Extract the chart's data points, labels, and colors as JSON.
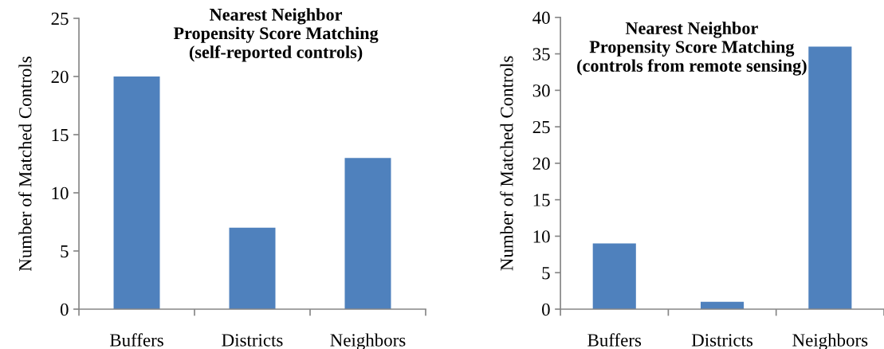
{
  "chart_data": [
    {
      "type": "bar",
      "title": "Nearest Neighbor\nPropensity Score Matching\n(self-reported controls)",
      "ylabel": "Number of Matched Controls",
      "categories": [
        "Buffers",
        "Districts",
        "Neighbors"
      ],
      "values": [
        20,
        7,
        13
      ],
      "color": "#4f81bd",
      "ylim": [
        0,
        25
      ],
      "yticks": [
        0,
        5,
        10,
        15,
        20,
        25
      ]
    },
    {
      "type": "bar",
      "title": "Nearest Neighbor\nPropensity Score Matching\n(controls from remote sensing)",
      "ylabel": "Number of Matched Controls",
      "categories": [
        "Buffers",
        "Districts",
        "Neighbors"
      ],
      "values": [
        9,
        1,
        36
      ],
      "color": "#4f81bd",
      "ylim": [
        0,
        40
      ],
      "yticks": [
        0,
        5,
        10,
        15,
        20,
        25,
        30,
        35,
        40
      ]
    }
  ]
}
